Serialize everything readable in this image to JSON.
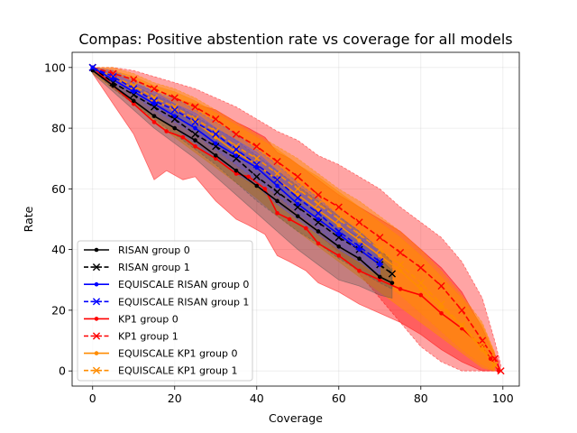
{
  "chart_data": {
    "type": "line",
    "title": "Compas: Positive abstention rate vs coverage for all models",
    "xlabel": "Coverage",
    "ylabel": "Rate",
    "xlim": [
      -5,
      104
    ],
    "ylim": [
      -5,
      105
    ],
    "xticks": [
      0,
      20,
      40,
      60,
      80,
      100
    ],
    "yticks": [
      0,
      20,
      40,
      60,
      80,
      100
    ],
    "grid": true,
    "legend_position": "lower-left",
    "series": [
      {
        "name": "RISAN group 0",
        "color": "#000000",
        "linestyle": "solid",
        "marker": "dot",
        "x": [
          0,
          5,
          10,
          15,
          20,
          25,
          30,
          35,
          40,
          45,
          50,
          55,
          60,
          65,
          70,
          73
        ],
        "y": [
          99,
          94,
          89,
          84,
          80,
          76,
          71,
          66,
          61,
          56,
          51,
          46,
          41,
          37,
          31,
          29
        ],
        "band_lo": [
          98,
          92,
          86,
          80,
          75,
          70,
          64,
          58,
          52,
          46,
          40,
          35,
          30,
          28,
          25,
          24
        ],
        "band_hi": [
          100,
          96,
          92,
          88,
          85,
          82,
          78,
          73,
          68,
          63,
          58,
          53,
          48,
          44,
          37,
          33
        ]
      },
      {
        "name": "RISAN group 1",
        "color": "#000000",
        "linestyle": "dashed",
        "marker": "x",
        "x": [
          0,
          5,
          10,
          15,
          20,
          25,
          30,
          35,
          40,
          45,
          50,
          55,
          60,
          65,
          70,
          73
        ],
        "y": [
          100,
          95,
          91,
          87,
          83,
          78,
          74,
          70,
          64,
          59,
          54,
          49,
          44,
          40,
          35,
          32
        ],
        "band_lo": [
          99,
          93,
          88,
          83,
          78,
          73,
          68,
          62,
          56,
          51,
          46,
          42,
          37,
          33,
          29,
          27
        ],
        "band_hi": [
          100,
          97,
          94,
          91,
          88,
          84,
          80,
          76,
          71,
          66,
          61,
          56,
          51,
          46,
          40,
          36
        ]
      },
      {
        "name": "EQUISCALE RISAN group 0",
        "color": "#0000ff",
        "linestyle": "solid",
        "marker": "dot",
        "x": [
          0,
          5,
          10,
          15,
          20,
          25,
          30,
          35,
          40,
          45,
          50,
          55,
          60,
          65,
          70
        ],
        "y": [
          100,
          96,
          92,
          88,
          84,
          80,
          75,
          71,
          67,
          61,
          55,
          50,
          45,
          40,
          35
        ],
        "band_lo": [
          99,
          94,
          89,
          84,
          80,
          75,
          70,
          65,
          61,
          55,
          50,
          45,
          40,
          36,
          31
        ],
        "band_hi": [
          100,
          98,
          95,
          92,
          88,
          85,
          80,
          76,
          72,
          66,
          60,
          55,
          50,
          45,
          39
        ]
      },
      {
        "name": "EQUISCALE RISAN group 1",
        "color": "#0000ff",
        "linestyle": "dashed",
        "marker": "x",
        "x": [
          0,
          5,
          10,
          15,
          20,
          25,
          30,
          35,
          40,
          45,
          50,
          55,
          60,
          65,
          70
        ],
        "y": [
          100,
          97,
          93,
          89,
          86,
          82,
          78,
          73,
          68,
          63,
          57,
          52,
          46,
          41,
          36
        ],
        "band_lo": [
          99,
          95,
          91,
          86,
          82,
          78,
          73,
          68,
          63,
          58,
          52,
          47,
          41,
          37,
          32
        ],
        "band_hi": [
          100,
          99,
          96,
          92,
          90,
          86,
          82,
          78,
          73,
          68,
          62,
          57,
          51,
          46,
          40
        ]
      },
      {
        "name": "KP1 group 0",
        "color": "#ff0000",
        "linestyle": "solid",
        "marker": "dot",
        "x": [
          0,
          5,
          10,
          15,
          18,
          22,
          25,
          30,
          35,
          38,
          42,
          45,
          48,
          52,
          55,
          60,
          65,
          70,
          75,
          80,
          85,
          90,
          95,
          97,
          99
        ],
        "y": [
          100,
          94,
          88,
          82,
          79,
          77,
          74,
          70,
          65,
          64,
          60,
          52,
          50,
          47,
          42,
          38,
          33,
          30,
          27,
          25,
          19,
          14,
          8,
          4,
          0
        ],
        "band_lo": [
          98,
          88,
          78,
          63,
          66,
          63,
          64,
          56,
          50,
          48,
          45,
          38,
          36,
          33,
          29,
          26,
          22,
          19,
          16,
          12,
          7,
          3,
          0,
          0,
          0
        ],
        "band_hi": [
          100,
          99,
          95,
          92,
          90,
          89,
          88,
          86,
          82,
          80,
          77,
          72,
          70,
          66,
          63,
          58,
          54,
          50,
          46,
          40,
          34,
          26,
          14,
          8,
          3
        ]
      },
      {
        "name": "KP1 group 1",
        "color": "#ff0000",
        "linestyle": "dashed",
        "marker": "x",
        "x": [
          0,
          5,
          10,
          15,
          20,
          25,
          30,
          35,
          40,
          45,
          50,
          55,
          60,
          65,
          70,
          75,
          80,
          85,
          90,
          95,
          98,
          99.5
        ],
        "y": [
          100,
          98,
          96,
          93,
          90,
          87,
          83,
          78,
          74,
          69,
          64,
          58,
          54,
          49,
          44,
          39,
          34,
          28,
          20,
          10,
          4,
          0
        ],
        "band_lo": [
          99,
          95,
          91,
          87,
          82,
          78,
          73,
          67,
          62,
          57,
          51,
          45,
          39,
          32,
          24,
          16,
          8,
          3,
          0,
          0,
          0,
          0
        ],
        "band_hi": [
          100,
          100,
          99,
          97,
          95,
          93,
          90,
          87,
          83,
          79,
          76,
          71,
          68,
          64,
          60,
          54,
          49,
          44,
          36,
          24,
          10,
          2
        ]
      },
      {
        "name": "EQUISCALE KP1 group 0",
        "color": "#ff8c00",
        "linestyle": "solid",
        "marker": "dot",
        "x": [
          0,
          5,
          10,
          15,
          20,
          25,
          30,
          35,
          40,
          45,
          50,
          55,
          60,
          65,
          70,
          75,
          80,
          85,
          90,
          95,
          98
        ],
        "y": [
          100,
          97,
          93,
          89,
          86,
          82,
          77,
          72,
          68,
          63,
          58,
          53,
          48,
          43,
          38,
          33,
          27,
          21,
          15,
          7,
          2
        ],
        "band_lo": [
          98,
          93,
          88,
          82,
          77,
          72,
          67,
          62,
          57,
          51,
          46,
          41,
          36,
          31,
          26,
          21,
          16,
          11,
          6,
          1,
          0
        ],
        "band_hi": [
          100,
          99,
          97,
          94,
          92,
          89,
          85,
          81,
          77,
          73,
          68,
          64,
          59,
          54,
          49,
          44,
          38,
          31,
          24,
          15,
          6
        ]
      },
      {
        "name": "EQUISCALE KP1 group 1",
        "color": "#ff8c00",
        "linestyle": "dashed",
        "marker": "x",
        "x": [
          0,
          5,
          10,
          15,
          20,
          25,
          30,
          35,
          40,
          45,
          50,
          55,
          60,
          65,
          70,
          75,
          80,
          85,
          90,
          95,
          98
        ],
        "y": [
          100,
          97,
          94,
          90,
          87,
          83,
          79,
          74,
          70,
          65,
          60,
          55,
          50,
          45,
          40,
          35,
          29,
          22,
          15,
          8,
          2
        ],
        "band_lo": [
          99,
          94,
          89,
          84,
          80,
          75,
          70,
          65,
          60,
          55,
          50,
          45,
          40,
          35,
          30,
          25,
          19,
          13,
          7,
          2,
          0
        ],
        "band_hi": [
          100,
          100,
          98,
          95,
          93,
          90,
          86,
          82,
          78,
          74,
          70,
          65,
          60,
          56,
          51,
          46,
          40,
          33,
          25,
          16,
          6
        ]
      }
    ]
  }
}
